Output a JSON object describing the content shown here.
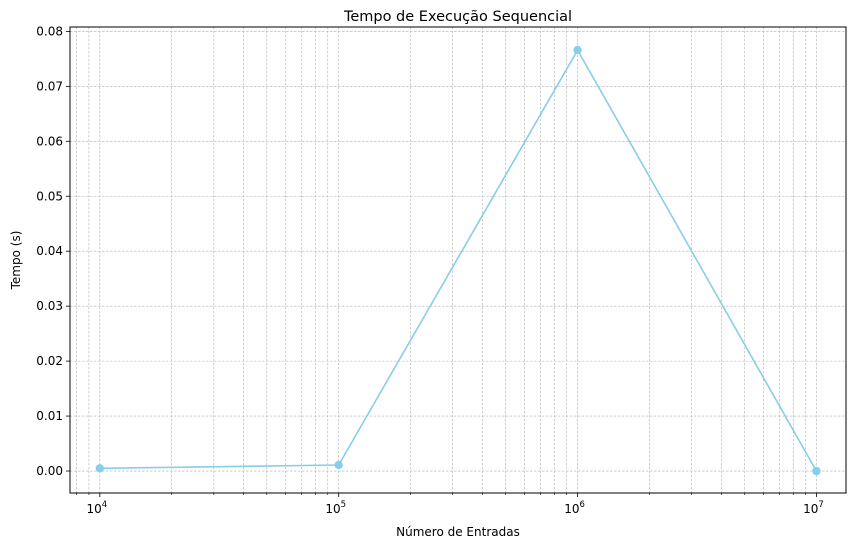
{
  "chart_data": {
    "type": "line",
    "title": "Tempo de Execução Sequencial",
    "xlabel": "Número de Entradas",
    "ylabel": "Tempo (s)",
    "xscale": "log",
    "xlim": [
      7500,
      13300000
    ],
    "ylim": [
      -0.004,
      0.0808
    ],
    "grid": true,
    "grid_style": "dashed",
    "x_ticks": [
      {
        "value": 10000,
        "base": "10",
        "exp": "4"
      },
      {
        "value": 100000,
        "base": "10",
        "exp": "5"
      },
      {
        "value": 1000000,
        "base": "10",
        "exp": "6"
      },
      {
        "value": 10000000,
        "base": "10",
        "exp": "7"
      }
    ],
    "y_ticks": [
      {
        "value": 0.0,
        "label": "0.00"
      },
      {
        "value": 0.01,
        "label": "0.01"
      },
      {
        "value": 0.02,
        "label": "0.02"
      },
      {
        "value": 0.03,
        "label": "0.03"
      },
      {
        "value": 0.04,
        "label": "0.04"
      },
      {
        "value": 0.05,
        "label": "0.05"
      },
      {
        "value": 0.06,
        "label": "0.06"
      },
      {
        "value": 0.07,
        "label": "0.07"
      },
      {
        "value": 0.08,
        "label": "0.08"
      }
    ],
    "series": [
      {
        "color": "#87ceeb",
        "marker": "circle",
        "x": [
          10000,
          100000,
          1000000,
          10000000
        ],
        "y": [
          0.0005,
          0.0011,
          0.0766,
          0.0
        ]
      }
    ]
  }
}
